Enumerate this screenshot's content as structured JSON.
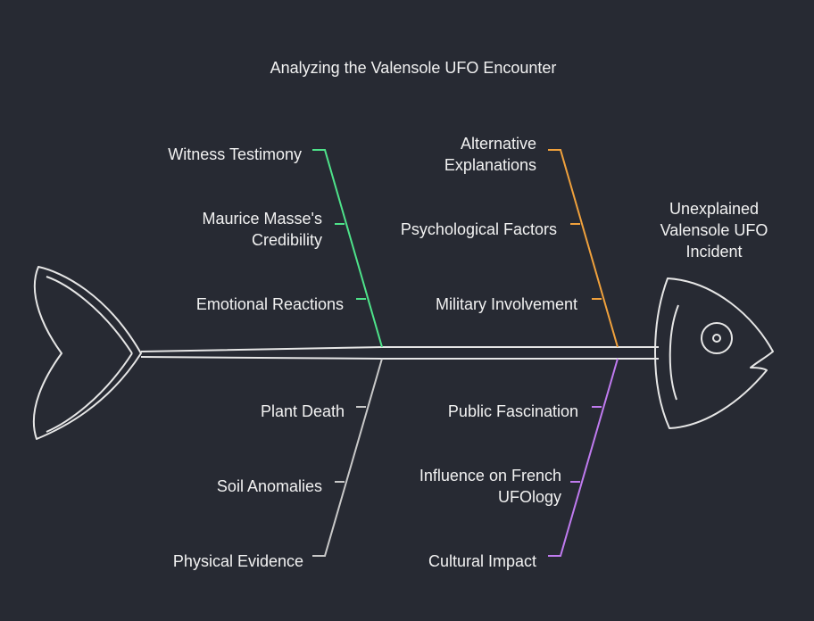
{
  "title": "Analyzing the Valensole UFO Encounter",
  "head_label_lines": [
    "Unexplained",
    "Valensole UFO",
    "Incident"
  ],
  "colors": {
    "background": "#272a33",
    "text": "#f2f2f2",
    "outline": "#e6e6e6",
    "branch_green": "#4ee38a",
    "branch_orange": "#f0a13c",
    "branch_gray": "#c9c9c9",
    "branch_purple": "#c07bf0"
  },
  "branches": [
    {
      "name": "Witness Testimony / Credibility",
      "color": "green",
      "items": [
        {
          "lines": [
            "Witness Testimony"
          ]
        },
        {
          "lines": [
            "Maurice Masse's",
            "Credibility"
          ]
        },
        {
          "lines": [
            "Emotional Reactions"
          ]
        }
      ]
    },
    {
      "name": "Alternative Explanations",
      "color": "orange",
      "items": [
        {
          "lines": [
            "Alternative",
            "Explanations"
          ]
        },
        {
          "lines": [
            "Psychological Factors"
          ]
        },
        {
          "lines": [
            "Military Involvement"
          ]
        }
      ]
    },
    {
      "name": "Physical Evidence",
      "color": "gray",
      "items": [
        {
          "lines": [
            "Plant Death"
          ]
        },
        {
          "lines": [
            "Soil Anomalies"
          ]
        },
        {
          "lines": [
            "Physical Evidence"
          ]
        }
      ]
    },
    {
      "name": "Cultural Impact",
      "color": "purple",
      "items": [
        {
          "lines": [
            "Public Fascination"
          ]
        },
        {
          "lines": [
            "Influence on French",
            "UFOlogy"
          ]
        },
        {
          "lines": [
            "Cultural Impact"
          ]
        }
      ]
    }
  ]
}
